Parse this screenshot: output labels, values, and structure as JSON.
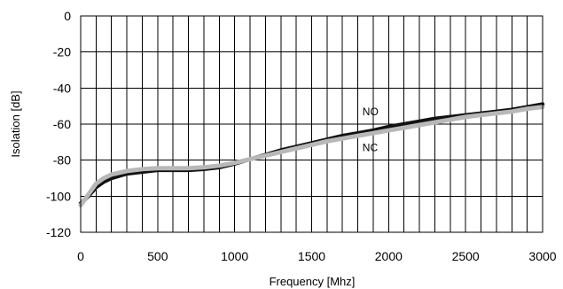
{
  "chart_data": {
    "type": "line",
    "title": "",
    "xlabel": "Frequency [Mhz]",
    "ylabel": "Isolation [dB]",
    "xlim": [
      0,
      3000
    ],
    "ylim": [
      -120,
      0
    ],
    "x_ticks": [
      0,
      500,
      1000,
      1500,
      2000,
      2500,
      3000
    ],
    "y_ticks": [
      0,
      -20,
      -40,
      -60,
      -80,
      -100,
      -120
    ],
    "x_minor_step": 100,
    "grid": true,
    "legend": "none",
    "series": [
      {
        "name": "NO",
        "color": "#111111",
        "x": [
          0,
          50,
          100,
          150,
          200,
          300,
          400,
          500,
          600,
          700,
          800,
          900,
          1000,
          1100,
          1200,
          1300,
          1400,
          1500,
          1600,
          1700,
          1800,
          1900,
          2000,
          2100,
          2200,
          2300,
          2400,
          2500,
          2600,
          2700,
          2800,
          2900,
          3000
        ],
        "values": [
          -104,
          -100,
          -95,
          -92,
          -90,
          -87.5,
          -86.5,
          -85.5,
          -85.5,
          -85.5,
          -85,
          -84,
          -82,
          -79.5,
          -77,
          -74.5,
          -72.5,
          -70.5,
          -68.5,
          -66.5,
          -65,
          -63.5,
          -61.5,
          -60,
          -58.5,
          -57,
          -56,
          -55,
          -54,
          -53,
          -52,
          -50.5,
          -49
        ]
      },
      {
        "name": "NC",
        "color": "#b8b8b8",
        "x": [
          0,
          50,
          100,
          150,
          200,
          300,
          400,
          500,
          600,
          700,
          800,
          900,
          1000,
          1100,
          1200,
          1300,
          1400,
          1500,
          1600,
          1700,
          1800,
          1900,
          2000,
          2100,
          2200,
          2300,
          2400,
          2500,
          2600,
          2700,
          2800,
          2900,
          3000
        ],
        "values": [
          -105,
          -99,
          -93,
          -90,
          -88,
          -86,
          -85,
          -84.5,
          -84.5,
          -84.5,
          -84,
          -83,
          -81.5,
          -79.5,
          -77.5,
          -75.5,
          -73.5,
          -71.5,
          -69.5,
          -68,
          -66.5,
          -65,
          -63.5,
          -62,
          -60.5,
          -59,
          -57.5,
          -56,
          -55,
          -54,
          -53,
          -51.5,
          -50.5
        ]
      }
    ],
    "annotations": [
      {
        "text": "NO",
        "x": 1830,
        "y": -55
      },
      {
        "text": "NC",
        "x": 1830,
        "y": -75
      }
    ]
  }
}
